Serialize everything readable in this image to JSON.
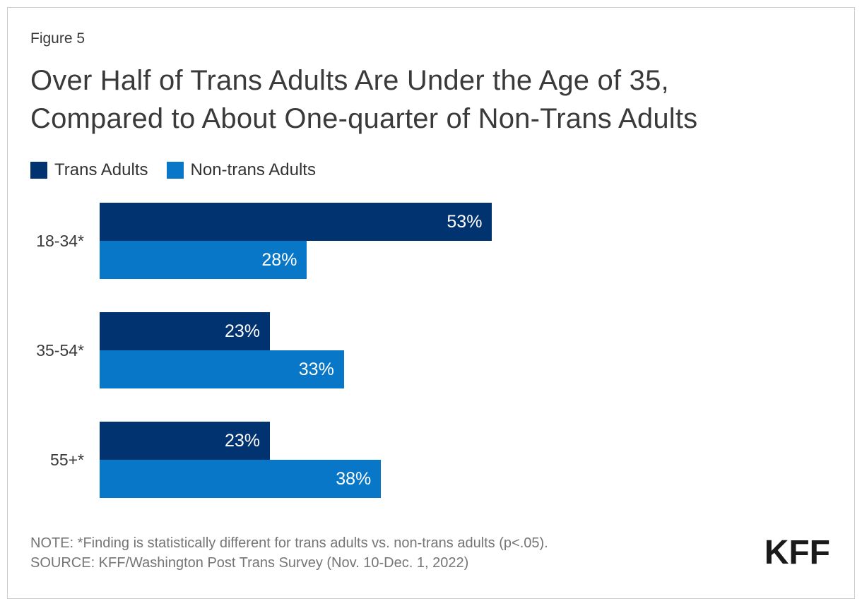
{
  "figure_label": "Figure 5",
  "title_line1": "Over Half of Trans Adults Are Under the Age of 35,",
  "title_line2": "Compared to About One-quarter of Non-Trans Adults",
  "legend": {
    "items": [
      {
        "label": "Trans Adults",
        "color": "#003370"
      },
      {
        "label": "Non-trans Adults",
        "color": "#0877C8"
      }
    ]
  },
  "chart_data": {
    "type": "bar",
    "orientation": "horizontal",
    "title": "Over Half of Trans Adults Are Under the Age of 35, Compared to About One-quarter of Non-Trans Adults",
    "categories": [
      "18-34*",
      "35-54*",
      "55+*"
    ],
    "series": [
      {
        "name": "Trans Adults",
        "color": "#003370",
        "values": [
          53,
          23,
          23
        ]
      },
      {
        "name": "Non-trans Adults",
        "color": "#0877C8",
        "values": [
          28,
          33,
          38
        ]
      }
    ],
    "value_suffix": "%",
    "xlim": [
      0,
      100
    ],
    "grid": false,
    "legend_position": "top-left",
    "value_labels": "inside-end"
  },
  "note": "NOTE: *Finding is statistically different for trans adults vs. non-trans adults (p<.05).",
  "source": "SOURCE: KFF/Washington Post Trans Survey (Nov. 10-Dec. 1, 2022)",
  "logo_text": "KFF",
  "colors": {
    "bar_trans": "#003370",
    "bar_non_trans": "#0877C8",
    "title_text": "#3a3a3a",
    "note_text": "#757575",
    "frame_border": "#cccccc",
    "value_label_text": "#ffffff"
  }
}
